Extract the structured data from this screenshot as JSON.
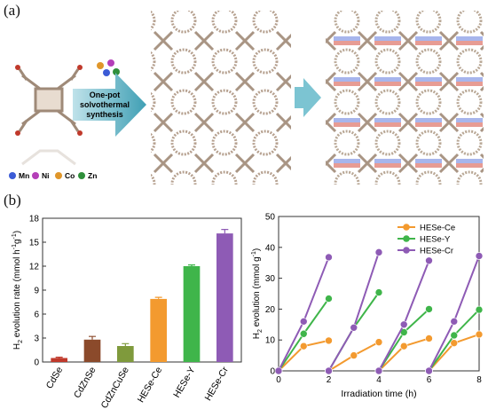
{
  "panels": {
    "a": "(a)",
    "b": "(b)"
  },
  "scheme": {
    "arrow_text": [
      "One-pot",
      "solvothermal",
      "synthesis"
    ],
    "metal_legend": [
      {
        "label": "Mn",
        "color": "#3b5bd6"
      },
      {
        "label": "Ni",
        "color": "#b43fb8"
      },
      {
        "label": "Co",
        "color": "#e0962a"
      },
      {
        "label": "Zn",
        "color": "#2f8f3a"
      }
    ]
  },
  "chart_data": [
    {
      "type": "bar",
      "categories": [
        "CdSe",
        "CdZnSe",
        "CdZnCuSe",
        "HESe-Ce",
        "HESe-Y",
        "HESe-Cr"
      ],
      "values": [
        0.5,
        2.8,
        2.0,
        7.9,
        12.0,
        16.1
      ],
      "errors": [
        0.1,
        0.4,
        0.3,
        0.2,
        0.15,
        0.5
      ],
      "colors": [
        "#c0392b",
        "#8b4a2b",
        "#7f9a3c",
        "#f39a2f",
        "#3fb54a",
        "#8e5bb5"
      ],
      "ylabel_prefix": "H",
      "ylabel_sub": "2",
      "ylabel_rest": " evolution rate (mmol h",
      "ylabel_sup1": "-1",
      "ylabel_mid": "g",
      "ylabel_sup2": "-1",
      "ylabel_end": ")",
      "ylim": [
        0,
        18
      ],
      "yticks": [
        "0",
        "3",
        "6",
        "9",
        "12",
        "15",
        "18"
      ]
    },
    {
      "type": "line",
      "xlabel": "Irradiation time (h)",
      "ylabel_prefix": "H",
      "ylabel_sub": "2",
      "ylabel_rest": " evolution (mmol g",
      "ylabel_sup": "-1",
      "ylabel_end": ")",
      "xlim": [
        0,
        8
      ],
      "ylim": [
        0,
        50
      ],
      "xticks": [
        "0",
        "2",
        "4",
        "6",
        "8"
      ],
      "yticks": [
        "0",
        "10",
        "20",
        "30",
        "40",
        "50"
      ],
      "legend_position": "top-right",
      "series": [
        {
          "name": "HESe-Ce",
          "color": "#f39a2f",
          "cycles": [
            [
              [
                0,
                0
              ],
              [
                1,
                8
              ],
              [
                2,
                9.8
              ]
            ],
            [
              [
                2,
                0
              ],
              [
                3,
                5
              ],
              [
                4,
                9.3
              ]
            ],
            [
              [
                4,
                0
              ],
              [
                5,
                8
              ],
              [
                6,
                10.5
              ]
            ],
            [
              [
                6,
                0
              ],
              [
                7,
                9
              ],
              [
                8,
                11.8
              ]
            ]
          ]
        },
        {
          "name": "HESe-Y",
          "color": "#3fb54a",
          "cycles": [
            [
              [
                0,
                0
              ],
              [
                1,
                12
              ],
              [
                2,
                23.4
              ]
            ],
            [
              [
                2,
                0
              ],
              [
                3,
                14
              ],
              [
                4,
                25.4
              ]
            ],
            [
              [
                4,
                0
              ],
              [
                5,
                12.5
              ],
              [
                6,
                20
              ]
            ],
            [
              [
                6,
                0
              ],
              [
                7,
                11.5
              ],
              [
                8,
                19.8
              ]
            ]
          ]
        },
        {
          "name": "HESe-Cr",
          "color": "#8e5bb5",
          "cycles": [
            [
              [
                0,
                0
              ],
              [
                1,
                16
              ],
              [
                2,
                36.8
              ]
            ],
            [
              [
                2,
                0
              ],
              [
                3,
                14
              ],
              [
                4,
                38.4
              ]
            ],
            [
              [
                4,
                0
              ],
              [
                5,
                15
              ],
              [
                6,
                35.7
              ]
            ],
            [
              [
                6,
                0
              ],
              [
                7,
                16
              ],
              [
                8,
                37.2
              ]
            ]
          ]
        }
      ]
    }
  ]
}
